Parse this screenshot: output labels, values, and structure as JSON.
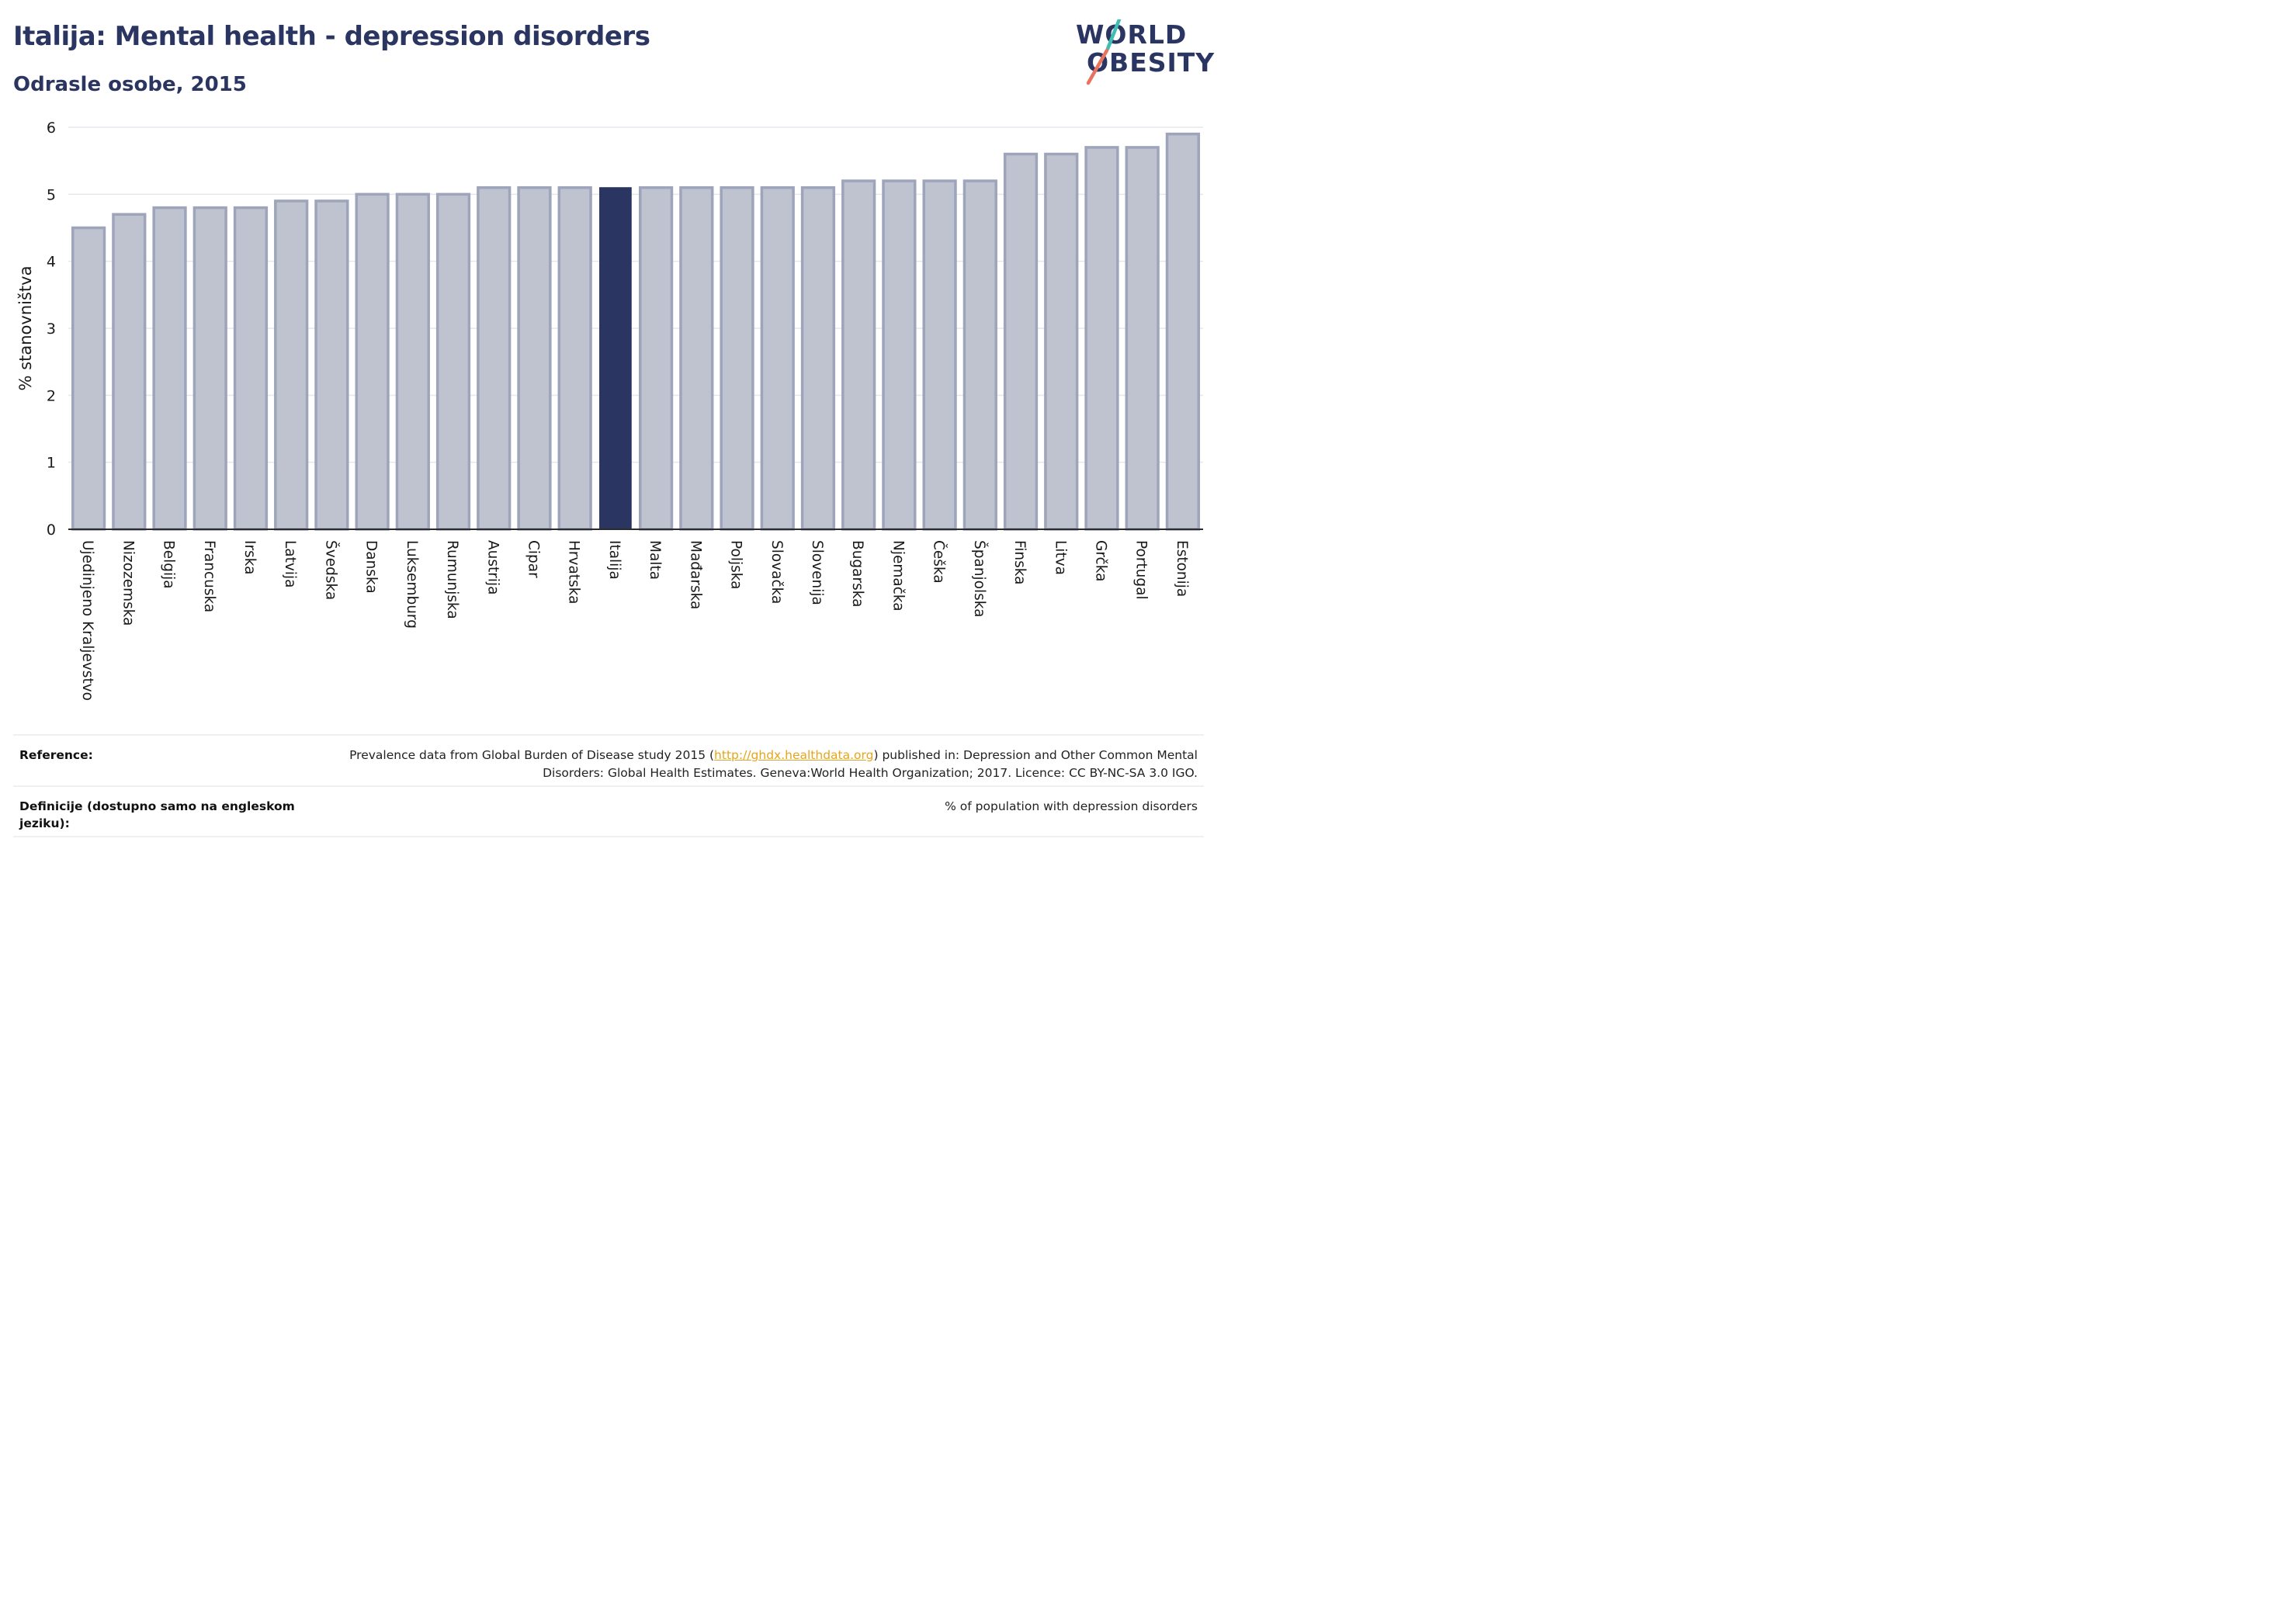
{
  "header": {
    "title": "Italija: Mental health - depression disorders",
    "subtitle": "Odrasle osobe, 2015"
  },
  "logo": {
    "line1": "WORLD",
    "line2": "OBESITY",
    "accent_teal": "#3fbfb3",
    "accent_coral": "#e9735e"
  },
  "colors": {
    "bar_fill": "#bfc3d0",
    "bar_stroke": "#9ea4ba",
    "highlight_fill": "#2b3561",
    "text_dark": "#2b3561",
    "link": "#e5a51c"
  },
  "chart_data": {
    "type": "bar",
    "ylabel": "% stanovništva",
    "ylim": [
      0,
      6
    ],
    "yticks": [
      0,
      1,
      2,
      3,
      4,
      5,
      6
    ],
    "grid": true,
    "highlight": "Italija",
    "categories": [
      "Ujedinjeno Kraljevstvo",
      "Nizozemska",
      "Belgija",
      "Francuska",
      "Irska",
      "Latvija",
      "Švedska",
      "Danska",
      "Luksemburg",
      "Rumunjska",
      "Austrija",
      "Cipar",
      "Hrvatska",
      "Italija",
      "Malta",
      "Mađarska",
      "Poljska",
      "Slovačka",
      "Slovenija",
      "Bugarska",
      "Njemačka",
      "Češka",
      "Španjolska",
      "Finska",
      "Litva",
      "Grčka",
      "Portugal",
      "Estonija"
    ],
    "values": [
      4.5,
      4.7,
      4.8,
      4.8,
      4.8,
      4.9,
      4.9,
      5.0,
      5.0,
      5.0,
      5.1,
      5.1,
      5.1,
      5.1,
      5.1,
      5.1,
      5.1,
      5.1,
      5.1,
      5.2,
      5.2,
      5.2,
      5.2,
      5.6,
      5.6,
      5.7,
      5.7,
      5.9
    ]
  },
  "reference": {
    "label": "Reference:",
    "text_before": "Prevalence data from Global Burden of Disease study 2015 (",
    "link_text": "http://ghdx.healthdata.org",
    "text_after": ") published in: Depression and Other Common Mental Disorders: Global Health Estimates. Geneva:World Health Organization; 2017. Licence: CC BY-NC-SA 3.0 IGO."
  },
  "definition": {
    "label": "Definicije (dostupno samo na engleskom jeziku):",
    "text": "% of population with depression disorders"
  }
}
